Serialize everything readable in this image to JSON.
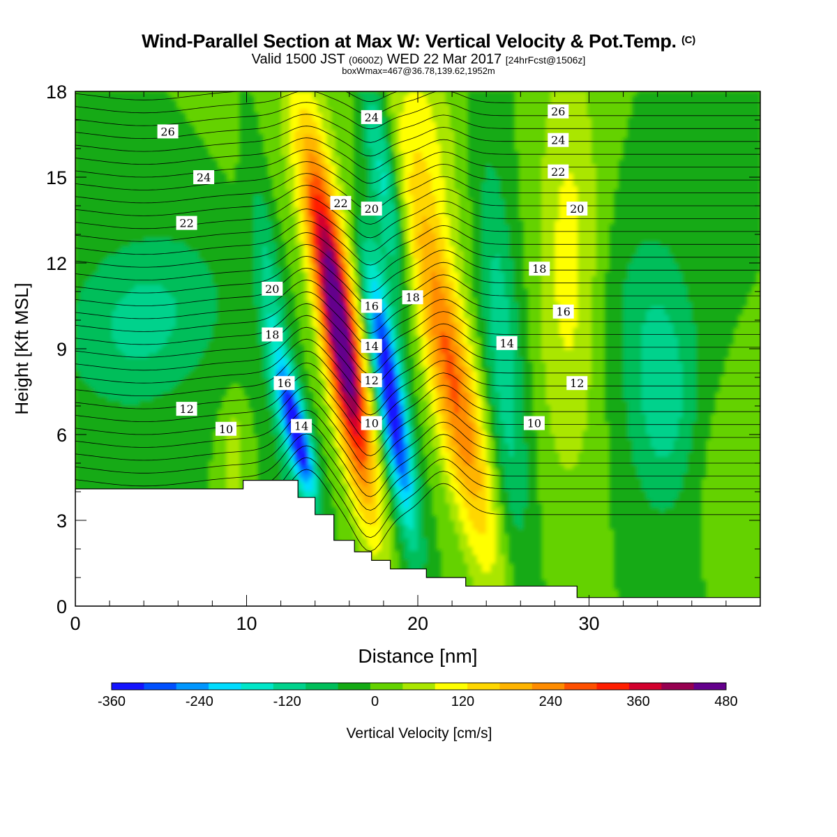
{
  "header": {
    "title": "Wind-Parallel Section at Max W: Vertical Velocity & Pot.Temp.",
    "copyright": "(C)",
    "valid_prefix": "Valid 1500 JST",
    "valid_zulu": "(0600Z)",
    "valid_date": "WED 22 Mar 2017",
    "forecast": "[24hrFcst@1506z]",
    "boxmax": "boxWmax=467@36.78,139.62,1952m"
  },
  "chart_data": {
    "type": "heatmap",
    "xlabel": "Distance [nm]",
    "ylabel": "Height [Kft MSL]",
    "xlim": [
      0,
      40
    ],
    "ylim": [
      0,
      18
    ],
    "xticks": [
      "0",
      "10",
      "20",
      "30"
    ],
    "yticks": [
      "0",
      "3",
      "6",
      "9",
      "12",
      "15",
      "18"
    ],
    "colorbar": {
      "label": "Vertical Velocity [cm/s]",
      "min": -360,
      "max": 480,
      "step": 40,
      "tick_labels": [
        "-360",
        "-240",
        "-120",
        "0",
        "120",
        "240",
        "360",
        "480"
      ],
      "colors": [
        "#1414ff",
        "#0050ff",
        "#0096ff",
        "#00dcff",
        "#00e6c8",
        "#00d28c",
        "#00be5a",
        "#14aa14",
        "#64d200",
        "#aae600",
        "#ffff00",
        "#ffd700",
        "#ffb400",
        "#ff8c00",
        "#ff5000",
        "#ff1e00",
        "#d2002d",
        "#960050",
        "#64008c"
      ]
    },
    "vertical_velocity_features": [
      {
        "x": 15.4,
        "y": 9.5,
        "value": 467,
        "label": "max updraft"
      },
      {
        "x": 18.4,
        "y": 7.5,
        "value": -340,
        "label": "downdraft"
      },
      {
        "x": 13.0,
        "y": 6.0,
        "value": -330,
        "label": "downdraft"
      },
      {
        "x": 22.0,
        "y": 8.0,
        "value": 240,
        "label": "updraft"
      },
      {
        "x": 28.5,
        "y": 13.0,
        "value": 80,
        "label": "weak updraft"
      },
      {
        "x": 4.0,
        "y": 10.0,
        "value": -80,
        "label": "weak downdraft"
      },
      {
        "x": 34.5,
        "y": 6.5,
        "value": -80,
        "label": "weak downdraft"
      }
    ],
    "potential_temperature_labels": [
      {
        "text": "26",
        "x": 5.4,
        "y": 16.6
      },
      {
        "text": "24",
        "x": 7.5,
        "y": 15.0
      },
      {
        "text": "22",
        "x": 6.5,
        "y": 13.4
      },
      {
        "text": "20",
        "x": 11.5,
        "y": 11.1
      },
      {
        "text": "18",
        "x": 11.5,
        "y": 9.5
      },
      {
        "text": "16",
        "x": 12.2,
        "y": 7.8
      },
      {
        "text": "14",
        "x": 13.2,
        "y": 6.3
      },
      {
        "text": "12",
        "x": 6.5,
        "y": 6.9
      },
      {
        "text": "10",
        "x": 8.8,
        "y": 6.2
      },
      {
        "text": "22",
        "x": 15.5,
        "y": 14.1
      },
      {
        "text": "24",
        "x": 17.3,
        "y": 17.1
      },
      {
        "text": "20",
        "x": 17.3,
        "y": 13.9
      },
      {
        "text": "16",
        "x": 17.3,
        "y": 10.5
      },
      {
        "text": "18",
        "x": 19.7,
        "y": 10.8
      },
      {
        "text": "14",
        "x": 17.3,
        "y": 9.1
      },
      {
        "text": "12",
        "x": 17.3,
        "y": 7.9
      },
      {
        "text": "10",
        "x": 17.3,
        "y": 6.4
      },
      {
        "text": "26",
        "x": 28.2,
        "y": 17.3
      },
      {
        "text": "24",
        "x": 28.2,
        "y": 16.3
      },
      {
        "text": "22",
        "x": 28.2,
        "y": 15.2
      },
      {
        "text": "20",
        "x": 29.3,
        "y": 13.9
      },
      {
        "text": "18",
        "x": 27.1,
        "y": 11.8
      },
      {
        "text": "16",
        "x": 28.5,
        "y": 10.3
      },
      {
        "text": "14",
        "x": 25.2,
        "y": 9.2
      },
      {
        "text": "12",
        "x": 29.3,
        "y": 7.8
      },
      {
        "text": "10",
        "x": 26.8,
        "y": 6.4
      }
    ],
    "terrain": [
      [
        0,
        4.1
      ],
      [
        9.8,
        4.1
      ],
      [
        9.8,
        4.4
      ],
      [
        13.0,
        4.4
      ],
      [
        13.0,
        3.8
      ],
      [
        14.0,
        3.8
      ],
      [
        14.0,
        3.2
      ],
      [
        15.1,
        3.2
      ],
      [
        15.1,
        2.3
      ],
      [
        16.3,
        2.3
      ],
      [
        16.3,
        1.9
      ],
      [
        17.3,
        1.9
      ],
      [
        17.3,
        1.6
      ],
      [
        18.4,
        1.6
      ],
      [
        18.4,
        1.3
      ],
      [
        20.5,
        1.3
      ],
      [
        20.5,
        1.0
      ],
      [
        22.8,
        1.0
      ],
      [
        22.8,
        0.7
      ],
      [
        29.3,
        0.7
      ],
      [
        29.3,
        0.3
      ],
      [
        40,
        0.3
      ]
    ]
  }
}
